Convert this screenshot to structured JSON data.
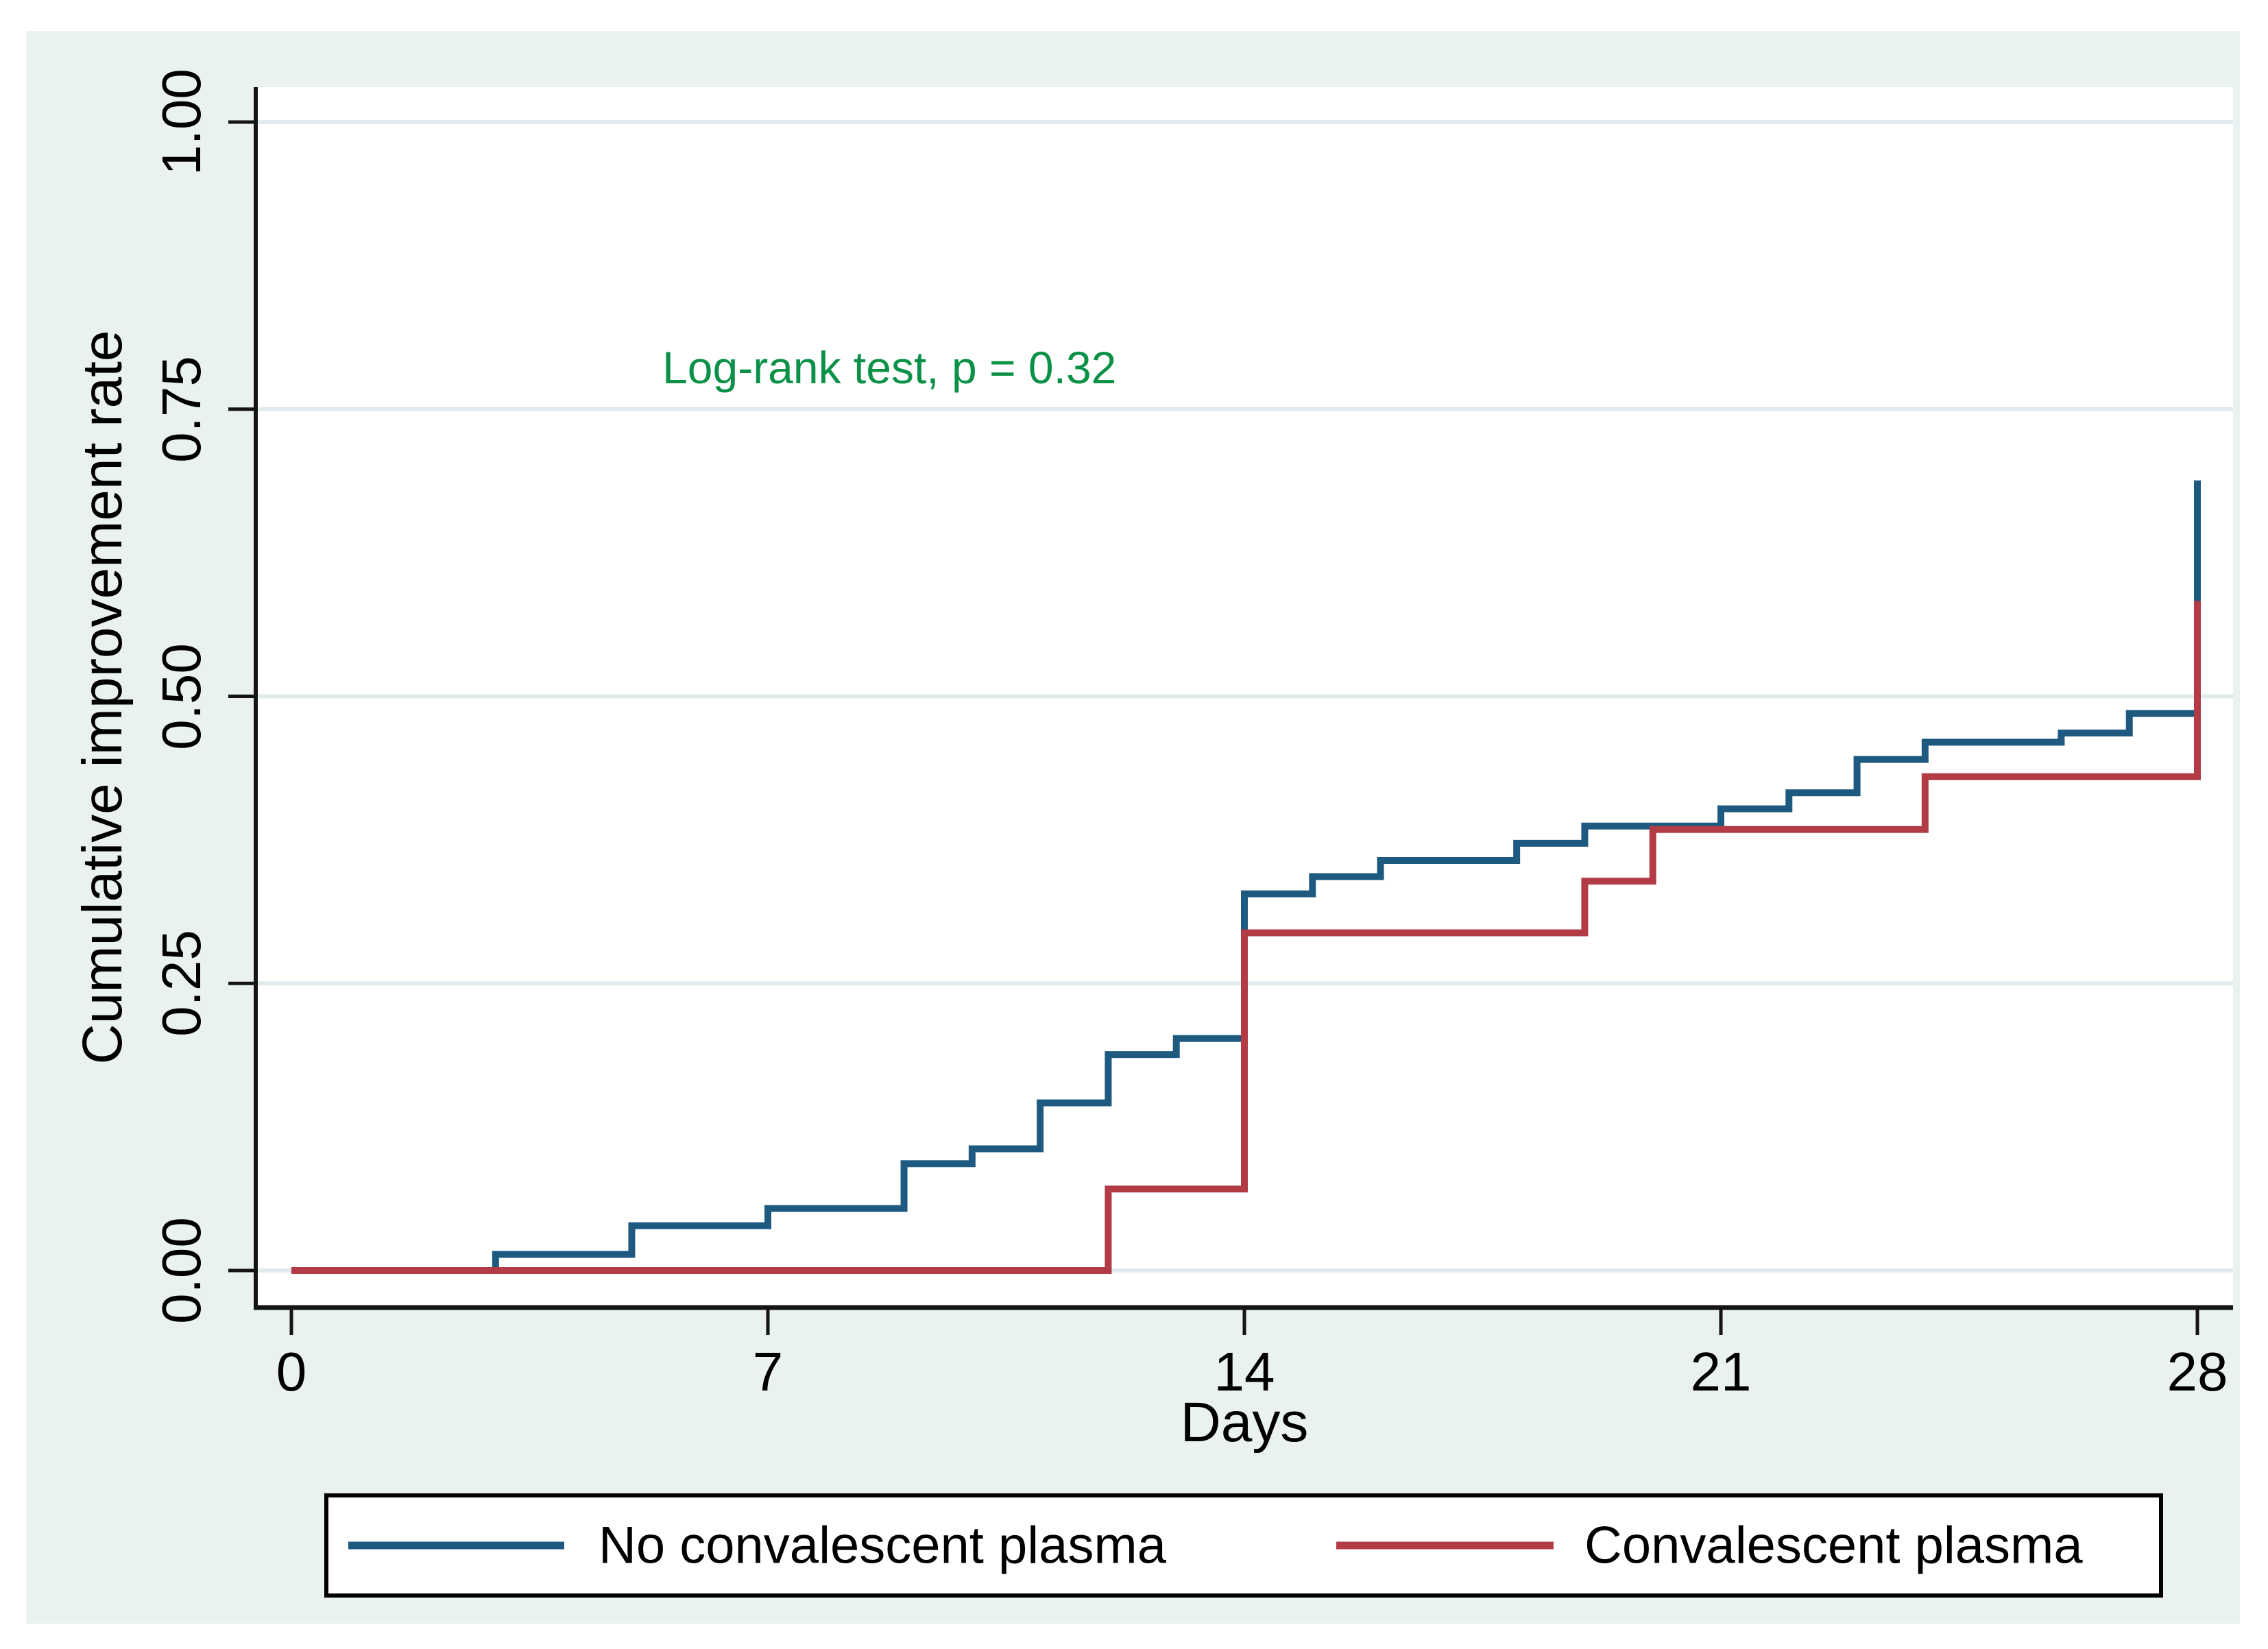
{
  "figure": {
    "page_background": "#ffffff",
    "canvas_background": "#e9f1f1",
    "plot_background": "#ffffff"
  },
  "chart_data": {
    "type": "step",
    "title": "",
    "xlabel": "Days",
    "ylabel": "Cumulative improvement rate",
    "xlim": [
      0,
      28
    ],
    "ylim": [
      0,
      1
    ],
    "grid": "horizontal gridlines at labeled y ticks",
    "grid_color": "#e0ebed",
    "axis_color": "#141414",
    "x_ticks": [
      {
        "v": 0,
        "label": "0"
      },
      {
        "v": 7,
        "label": "7"
      },
      {
        "v": 14,
        "label": "14"
      },
      {
        "v": 21,
        "label": "21"
      },
      {
        "v": 28,
        "label": "28"
      }
    ],
    "y_ticks": [
      {
        "v": 0,
        "label": "0.00"
      },
      {
        "v": 0.25,
        "label": "0.25"
      },
      {
        "v": 0.5,
        "label": "0.50"
      },
      {
        "v": 0.75,
        "label": "0.75"
      },
      {
        "v": 1,
        "label": "1.00"
      }
    ],
    "annotation": {
      "text": "Log-rank test, p = 0.32",
      "color": "#0a9147",
      "x_day": 5.45,
      "y_value": 0.786
    },
    "series": [
      {
        "name": "No convalescent plasma",
        "color": "#1e5a80",
        "points": [
          [
            0,
            0
          ],
          [
            3,
            0.014
          ],
          [
            5,
            0.039
          ],
          [
            7,
            0.054
          ],
          [
            9,
            0.093
          ],
          [
            10,
            0.106
          ],
          [
            11,
            0.146
          ],
          [
            12,
            0.188
          ],
          [
            13,
            0.202
          ],
          [
            14,
            0.328
          ],
          [
            15,
            0.343
          ],
          [
            16,
            0.357
          ],
          [
            18,
            0.372
          ],
          [
            19,
            0.387
          ],
          [
            21,
            0.402
          ],
          [
            22,
            0.416
          ],
          [
            23,
            0.445
          ],
          [
            24,
            0.46
          ],
          [
            26,
            0.468
          ],
          [
            27,
            0.485
          ],
          [
            28,
            0.688
          ]
        ]
      },
      {
        "name": "Convalescent plasma",
        "color": "#b23b45",
        "points": [
          [
            0,
            0
          ],
          [
            12,
            0.071
          ],
          [
            14,
            0.294
          ],
          [
            19,
            0.339
          ],
          [
            20,
            0.384
          ],
          [
            24,
            0.43
          ],
          [
            28,
            0.583
          ]
        ]
      }
    ],
    "legend_position": "bottom"
  }
}
